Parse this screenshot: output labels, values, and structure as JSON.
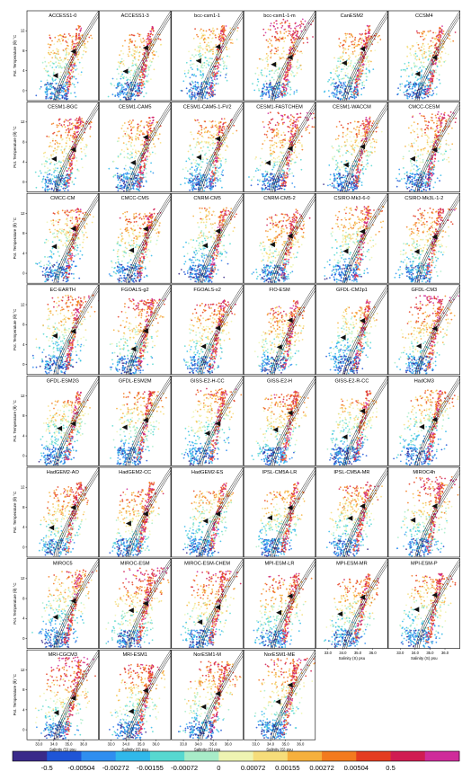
{
  "chart_data": {
    "type": "scatter",
    "xlabel": "Salinity (S) psu",
    "ylabel": "Pot. Temperature (θ) °C",
    "x_ticks": [
      "33.0",
      "34.0",
      "35.0",
      "36.0"
    ],
    "y_ticks": [
      "0",
      "4",
      "8",
      "12"
    ],
    "xlim": [
      32.2,
      37.0
    ],
    "ylim": [
      -2,
      16
    ],
    "grid": false,
    "layout": {
      "rows": 8,
      "cols": 6
    },
    "panels": [
      "ACCESS1-0",
      "ACCESS1-3",
      "bcc-csm1-1",
      "bcc-csm1-1-m",
      "CanESM2",
      "CCSM4",
      "CESM1-BGC",
      "CESM1-CAM5",
      "CESM1-CAM5-1-FV2",
      "CESM1-FASTCHEM",
      "CESM1-WACCM",
      "CMCC-CESM",
      "CMCC-CM",
      "CMCC-CMS",
      "CNRM-CM5",
      "CNRM-CM5-2",
      "CSIRO-Mk3-6-0",
      "CSIRO-Mk3L-1-2",
      "EC-EARTH",
      "FGOALS-g2",
      "FGOALS-s2",
      "FIO-ESM",
      "GFDL-CM2p1",
      "GFDL-CM3",
      "GFDL-ESM2G",
      "GFDL-ESM2M",
      "GISS-E2-H-CC",
      "GISS-E2-H",
      "GISS-E2-R-CC",
      "HadCM3",
      "HadGEM2-AO",
      "HadGEM2-CC",
      "HadGEM2-ES",
      "IPSL-CM5A-LR",
      "IPSL-CM5A-MR",
      "MIROC4h",
      "MIROC5",
      "MIROC-ESM",
      "MIROC-ESM-CHEM",
      "MPI-ESM-LR",
      "MPI-ESM-MR",
      "MPI-ESM-P",
      "MRI-CGCM3",
      "MRI-ESM1",
      "NorESM1-M",
      "NorESM1-ME"
    ],
    "colorbar": {
      "labels": [
        "-0.5",
        "-0.00504",
        "-0.00272",
        "-0.00155",
        "-0.00072",
        "0",
        "0.00072",
        "0.00155",
        "0.00272",
        "0.00504",
        "0.5"
      ],
      "colors": [
        "#3a2a8a",
        "#1f55d6",
        "#2f8ef0",
        "#30b8ea",
        "#57d8d0",
        "#a8ecc8",
        "#eef4b2",
        "#f6dd7a",
        "#f6b03c",
        "#f37a1e",
        "#e43c20",
        "#d01c52",
        "#cf2c9a"
      ]
    }
  }
}
